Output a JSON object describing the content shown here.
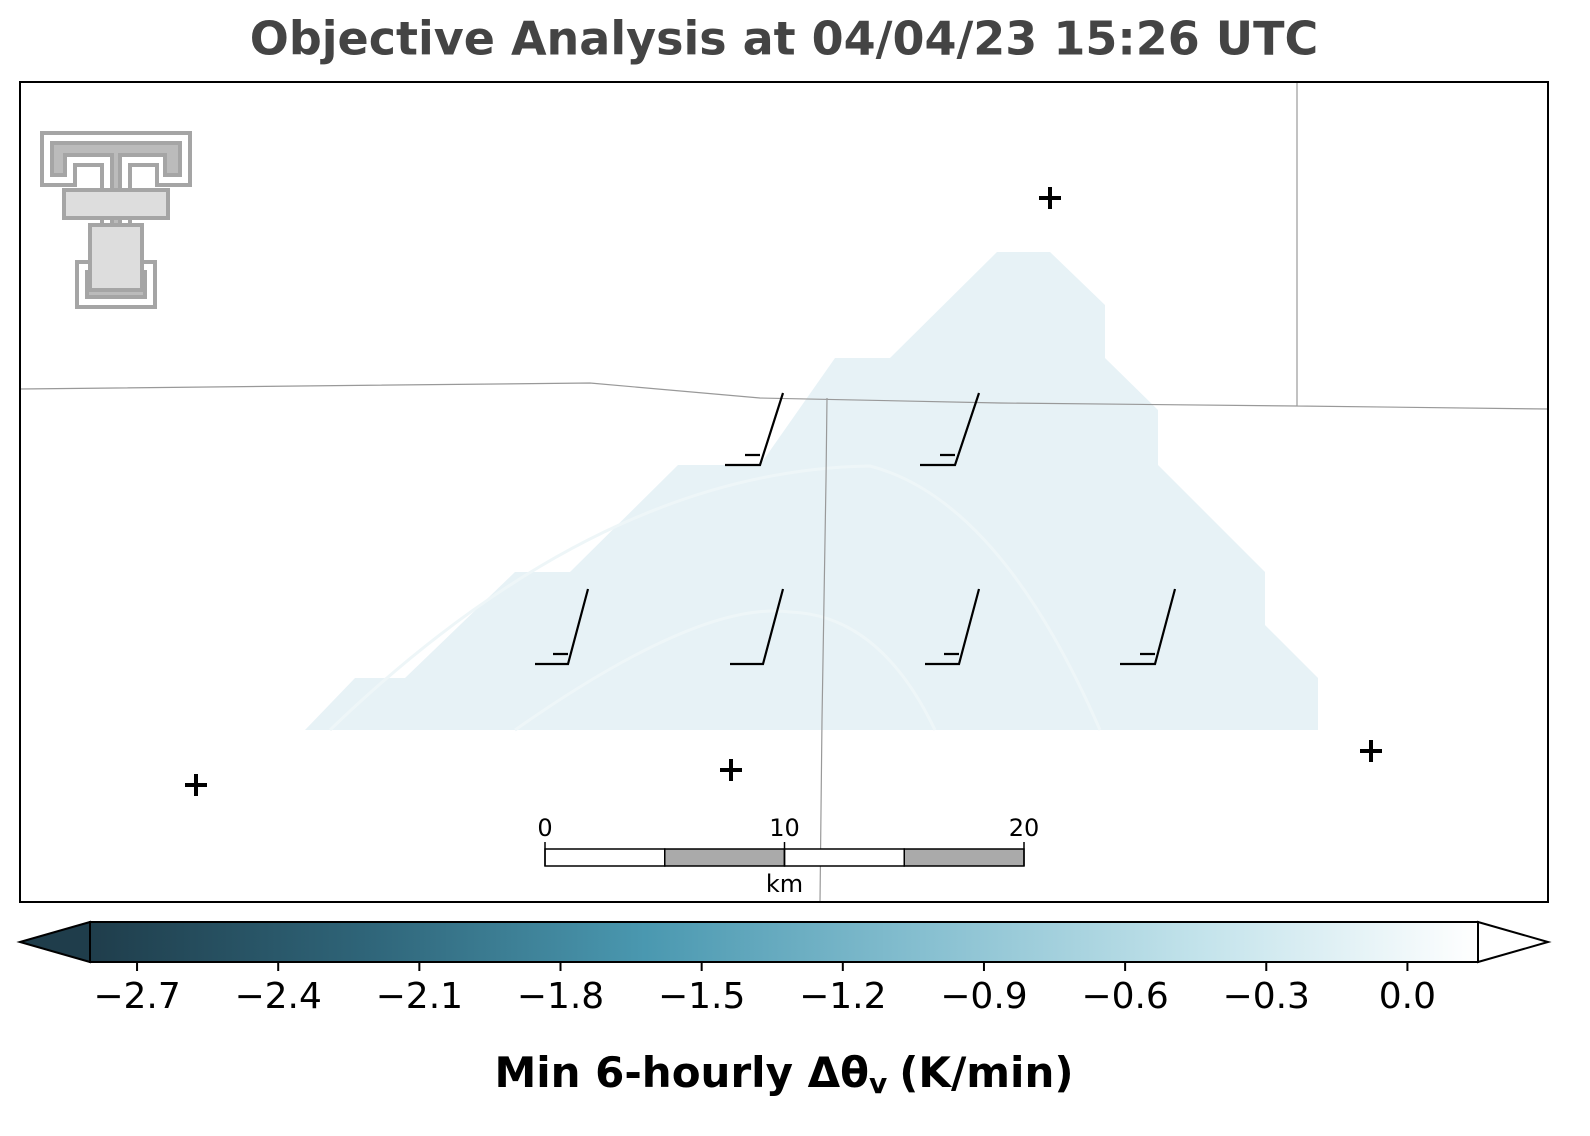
{
  "title": "Objective Analysis at 04/04/23 15:26 UTC",
  "colorbar": {
    "label_main": "Min 6-hourly Δθ",
    "label_sub": "v",
    "label_unit": "(K/min)",
    "clim": [
      -2.8,
      0.15
    ],
    "colors": [
      "#1f3d4b",
      "#2f6579",
      "#4a98b0",
      "#86bfd0",
      "#c3e3eb",
      "#ffffff"
    ],
    "ticks": [
      {
        "value": -2.7,
        "label": "−2.7"
      },
      {
        "value": -2.4,
        "label": "−2.4"
      },
      {
        "value": -2.1,
        "label": "−2.1"
      },
      {
        "value": -1.8,
        "label": "−1.8"
      },
      {
        "value": -1.5,
        "label": "−1.5"
      },
      {
        "value": -1.2,
        "label": "−1.2"
      },
      {
        "value": -0.9,
        "label": "−0.9"
      },
      {
        "value": -0.6,
        "label": "−0.6"
      },
      {
        "value": -0.3,
        "label": "−0.3"
      },
      {
        "value": 0,
        "label": "0.0"
      }
    ]
  },
  "scale_bar": {
    "ticks": [
      0,
      10,
      20
    ],
    "unit": "km"
  }
}
